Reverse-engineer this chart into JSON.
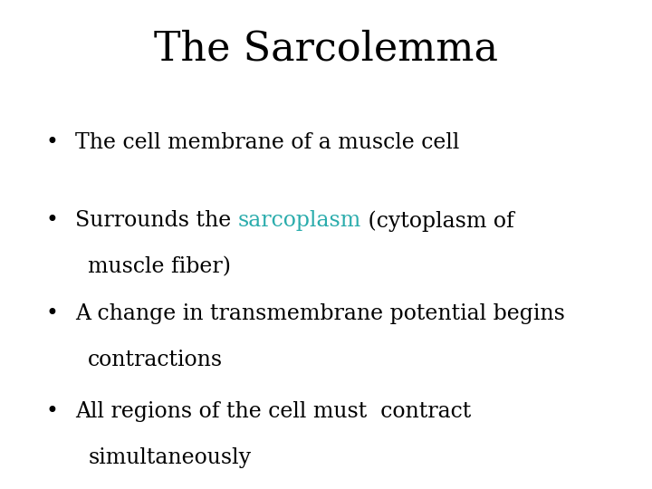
{
  "title": "The Sarcolemma",
  "title_fontsize": 32,
  "title_color": "#000000",
  "background_color": "#ffffff",
  "bullet_fontsize": 17,
  "bullet_dot": "•",
  "sarcoplasm_color": "#2aacac",
  "bullets": [
    {
      "lines": [
        [
          [
            "The cell membrane of a muscle cell",
            "#000000"
          ]
        ]
      ]
    },
    {
      "lines": [
        [
          [
            "Surrounds the ",
            "#000000"
          ],
          [
            "sarcoplasm",
            "#2aacac"
          ],
          [
            " (cytoplasm of",
            "#000000"
          ]
        ],
        [
          [
            "muscle fiber)",
            "#000000"
          ]
        ]
      ]
    },
    {
      "lines": [
        [
          [
            "A change in transmembrane potential begins",
            "#000000"
          ]
        ],
        [
          [
            "contractions",
            "#000000"
          ]
        ]
      ]
    },
    {
      "lines": [
        [
          [
            "All regions of the cell must  contract",
            "#000000"
          ]
        ],
        [
          [
            "simultaneously",
            "#000000"
          ]
        ]
      ]
    }
  ]
}
